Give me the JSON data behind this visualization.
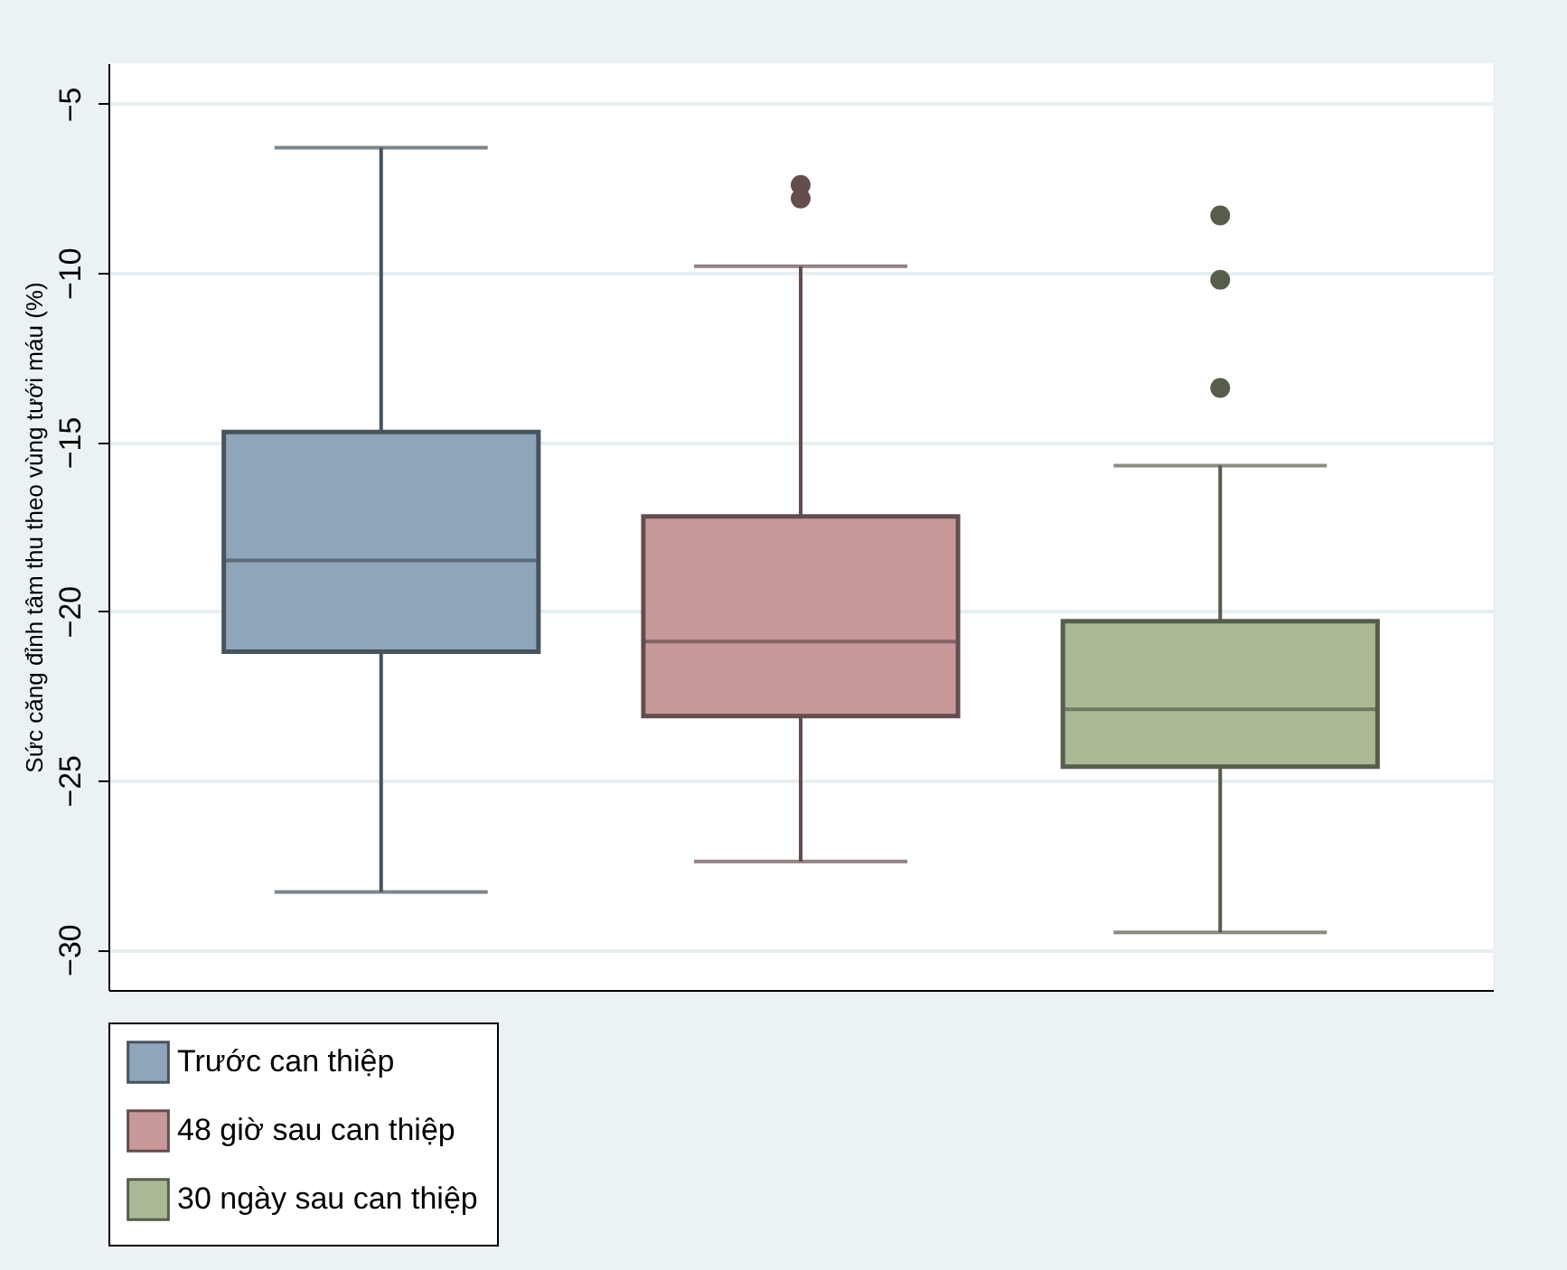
{
  "chart_data": {
    "type": "box",
    "ylabel": "Sức căng đỉnh tâm thu theo vùng tưới máu (%)",
    "categories": [
      null
    ],
    "series": [
      {
        "name": "Trước can thiệp",
        "color": "#8ea5ba",
        "boxes": [
          {
            "low": -28.3,
            "q1": -21.2,
            "median": -18.5,
            "q3": -14.7,
            "high": -6.3
          }
        ]
      },
      {
        "name": "48 giờ sau can thiệp",
        "color": "#c8999b",
        "boxes": [
          {
            "low": -27.4,
            "q1": -23.1,
            "median": -20.9,
            "q3": -17.2,
            "high": -9.8,
            "outliers": [
              -7.4,
              -7.8
            ]
          }
        ]
      },
      {
        "name": "30 ngày sau can thiệp",
        "color": "#aab995",
        "boxes": [
          {
            "low": -29.5,
            "q1": -24.6,
            "median": -22.9,
            "q3": -20.3,
            "high": -15.7,
            "outliers": [
              -8.3,
              -10.2,
              -13.4
            ]
          }
        ]
      }
    ],
    "ylim": [
      -31.2,
      -3.8
    ],
    "yticks": [
      -30,
      -25,
      -20,
      -15,
      -10,
      -5
    ],
    "grid": "y",
    "legend": "bottom",
    "tick_labels": "y"
  }
}
